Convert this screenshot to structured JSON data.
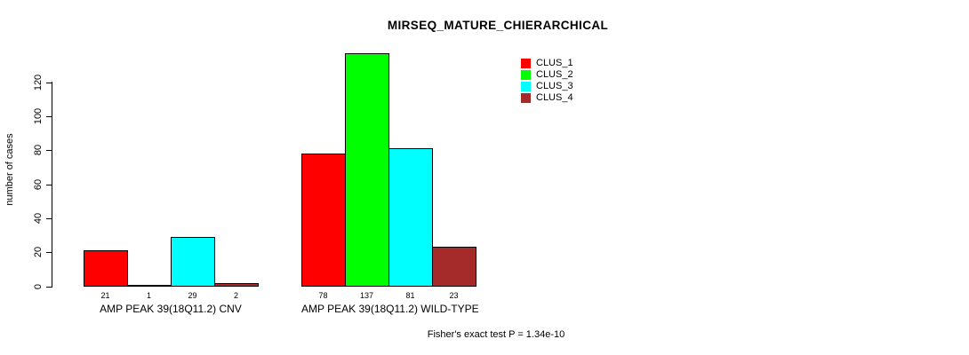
{
  "chart_data": {
    "type": "bar",
    "title": "MIRSEQ_MATURE_CHIERARCHICAL",
    "ylabel": "number of cases",
    "xlabel": "",
    "ylim": [
      0,
      140
    ],
    "yticks": [
      0,
      20,
      40,
      60,
      80,
      100,
      120
    ],
    "grid": false,
    "legend_position": "top-right",
    "bar_value_labels": true,
    "categories": [
      "AMP PEAK 39(18Q11.2) CNV",
      "AMP PEAK 39(18Q11.2) WILD-TYPE"
    ],
    "series": [
      {
        "name": "CLUS_1",
        "color": "#FF0000",
        "values": [
          21,
          78
        ]
      },
      {
        "name": "CLUS_2",
        "color": "#00FF00",
        "values": [
          1,
          137
        ]
      },
      {
        "name": "CLUS_3",
        "color": "#00FFFF",
        "values": [
          29,
          81
        ]
      },
      {
        "name": "CLUS_4",
        "color": "#A52A2A",
        "values": [
          2,
          23
        ]
      }
    ],
    "annotation": "Fisher's exact test P = 1.34e-10"
  }
}
